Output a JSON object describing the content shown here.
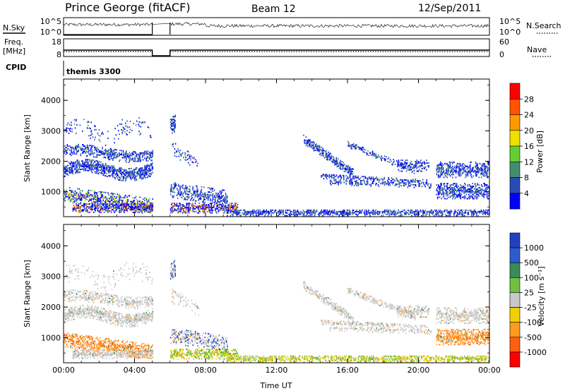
{
  "header": {
    "title": "Prince George (fitACF)",
    "beam": "Beam 12",
    "date": "12/Sep/2011"
  },
  "summary_panels": {
    "nsky": {
      "label": "N.Sky",
      "ticks": [
        "10^5",
        "10^0"
      ]
    },
    "nsearch": {
      "label": "N.Search",
      "ticks": [
        "10^5",
        "10^0"
      ]
    },
    "freq": {
      "label_line1": "Freq.",
      "label_line2": "[MHz]",
      "ticks": [
        "18",
        "8"
      ]
    },
    "nave": {
      "label": "Nave",
      "ticks": [
        "60",
        "0"
      ]
    },
    "cpid": {
      "label": "CPID",
      "value": "themis 3300"
    }
  },
  "colors": {
    "power_scale": [
      "#0000ff",
      "#2a4bb5",
      "#3f8f6e",
      "#66cc33",
      "#f0e000",
      "#ff9900",
      "#ff5500",
      "#ff0000"
    ],
    "velocity_scale": [
      "#2040c0",
      "#2d5bd0",
      "#3a8a5a",
      "#70c040",
      "#c8c8c8",
      "#f0d000",
      "#ff9a20",
      "#ff6010",
      "#ff0000"
    ]
  },
  "chart_data": [
    {
      "type": "heatmap",
      "name": "power",
      "xlabel": "",
      "ylabel": "Slant Range [km]",
      "x_ticks": [
        "00:00",
        "04:00",
        "08:00",
        "12:00",
        "16:00",
        "20:00",
        "00:00"
      ],
      "x_range_hours": [
        0,
        24
      ],
      "y_ticks": [
        1000,
        2000,
        3000,
        4000
      ],
      "ylim": [
        180,
        4700
      ],
      "colorbar": {
        "label": "Power [dB]",
        "tick_labels": [
          "28",
          "24",
          "20",
          "16",
          "12",
          "8",
          "4"
        ],
        "range": [
          0,
          32
        ]
      },
      "data_gap_hours": [
        5.0,
        6.0
      ]
    },
    {
      "type": "heatmap",
      "name": "velocity",
      "xlabel": "Time UT",
      "ylabel": "Slant Range [km]",
      "x_ticks": [
        "00:00",
        "04:00",
        "08:00",
        "12:00",
        "16:00",
        "20:00",
        "00:00"
      ],
      "x_range_hours": [
        0,
        24
      ],
      "y_ticks": [
        1000,
        2000,
        3000,
        4000
      ],
      "ylim": [
        180,
        4700
      ],
      "colorbar": {
        "label": "Velocity [m s⁻¹]",
        "tick_labels": [
          "1000",
          "500",
          "100",
          "25",
          "-25",
          "-100",
          "-500",
          "-1000"
        ]
      },
      "data_gap_hours": [
        5.0,
        6.0
      ]
    }
  ]
}
